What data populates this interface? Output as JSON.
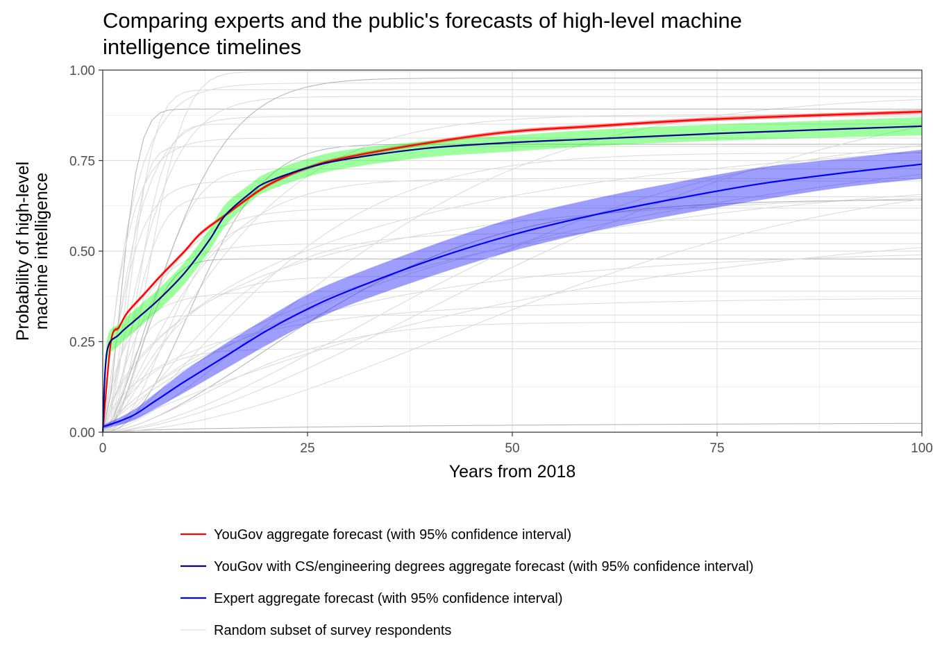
{
  "chart_data": {
    "type": "line",
    "title_lines": [
      "Comparing experts and the public's forecasts of high-level machine",
      "intelligence timelines"
    ],
    "xlabel": "Years from 2018",
    "ylabel_lines": [
      "Probability of high-level",
      "machine intelligence"
    ],
    "xlim": [
      0,
      100
    ],
    "ylim": [
      0,
      1
    ],
    "x_ticks": [
      0,
      25,
      50,
      75,
      100
    ],
    "x_tick_labels": [
      "0",
      "25",
      "50",
      "75",
      "100"
    ],
    "y_ticks": [
      0,
      0.25,
      0.5,
      0.75,
      1
    ],
    "y_tick_labels": [
      "0.00",
      "0.25",
      "0.50",
      "0.75",
      "1.00"
    ],
    "grid": true,
    "legend_position": "bottom",
    "series": [
      {
        "name": "YouGov aggregate forecast (with 95% confidence interval)",
        "color": "#ff0000",
        "band_color": "#ff0000",
        "x": [
          0,
          1,
          2,
          3,
          5,
          7,
          10,
          12,
          15,
          20,
          25,
          30,
          40,
          50,
          60,
          75,
          100
        ],
        "y": [
          0.0,
          0.25,
          0.29,
          0.33,
          0.38,
          0.43,
          0.5,
          0.55,
          0.6,
          0.68,
          0.73,
          0.76,
          0.8,
          0.83,
          0.845,
          0.865,
          0.885
        ],
        "lower": [
          0.0,
          0.245,
          0.285,
          0.325,
          0.375,
          0.425,
          0.495,
          0.545,
          0.595,
          0.675,
          0.725,
          0.755,
          0.795,
          0.825,
          0.84,
          0.86,
          0.88
        ],
        "upper": [
          0.0,
          0.255,
          0.295,
          0.335,
          0.385,
          0.435,
          0.505,
          0.555,
          0.605,
          0.685,
          0.735,
          0.765,
          0.805,
          0.835,
          0.85,
          0.87,
          0.89
        ]
      },
      {
        "name": "YouGov with CS/engineering degrees aggregate forecast (with 95% confidence interval)",
        "color": "#00008b",
        "band_color": "#00ff00",
        "x": [
          0,
          0.5,
          2,
          4,
          7,
          10,
          13,
          15,
          18,
          20,
          25,
          30,
          40,
          50,
          60,
          75,
          100
        ],
        "y": [
          0.0,
          0.22,
          0.27,
          0.31,
          0.37,
          0.44,
          0.53,
          0.6,
          0.66,
          0.69,
          0.73,
          0.755,
          0.785,
          0.8,
          0.81,
          0.825,
          0.845
        ],
        "lower": [
          0.0,
          0.19,
          0.24,
          0.28,
          0.34,
          0.41,
          0.5,
          0.57,
          0.635,
          0.665,
          0.705,
          0.73,
          0.76,
          0.775,
          0.79,
          0.805,
          0.82
        ],
        "upper": [
          0.0,
          0.25,
          0.3,
          0.34,
          0.4,
          0.47,
          0.56,
          0.63,
          0.685,
          0.715,
          0.755,
          0.78,
          0.805,
          0.82,
          0.835,
          0.85,
          0.87
        ]
      },
      {
        "name": "Expert aggregate forecast (with 95% confidence interval)",
        "color": "#0000ff",
        "band_color": "#0000ff",
        "x": [
          0,
          2,
          4,
          6,
          8,
          10,
          15,
          20,
          25,
          30,
          40,
          50,
          60,
          70,
          80,
          90,
          100
        ],
        "y": [
          0.015,
          0.03,
          0.05,
          0.08,
          0.11,
          0.14,
          0.21,
          0.28,
          0.34,
          0.39,
          0.475,
          0.545,
          0.6,
          0.645,
          0.685,
          0.715,
          0.74
        ],
        "lower": [
          0.01,
          0.02,
          0.035,
          0.06,
          0.085,
          0.11,
          0.175,
          0.24,
          0.3,
          0.35,
          0.43,
          0.5,
          0.555,
          0.6,
          0.64,
          0.675,
          0.7
        ],
        "upper": [
          0.02,
          0.04,
          0.065,
          0.1,
          0.135,
          0.17,
          0.245,
          0.315,
          0.38,
          0.43,
          0.515,
          0.59,
          0.645,
          0.69,
          0.73,
          0.755,
          0.78
        ]
      }
    ],
    "background_series": {
      "name": "Random subset of survey respondents",
      "color": "#d9d9d9",
      "count": 40
    }
  }
}
